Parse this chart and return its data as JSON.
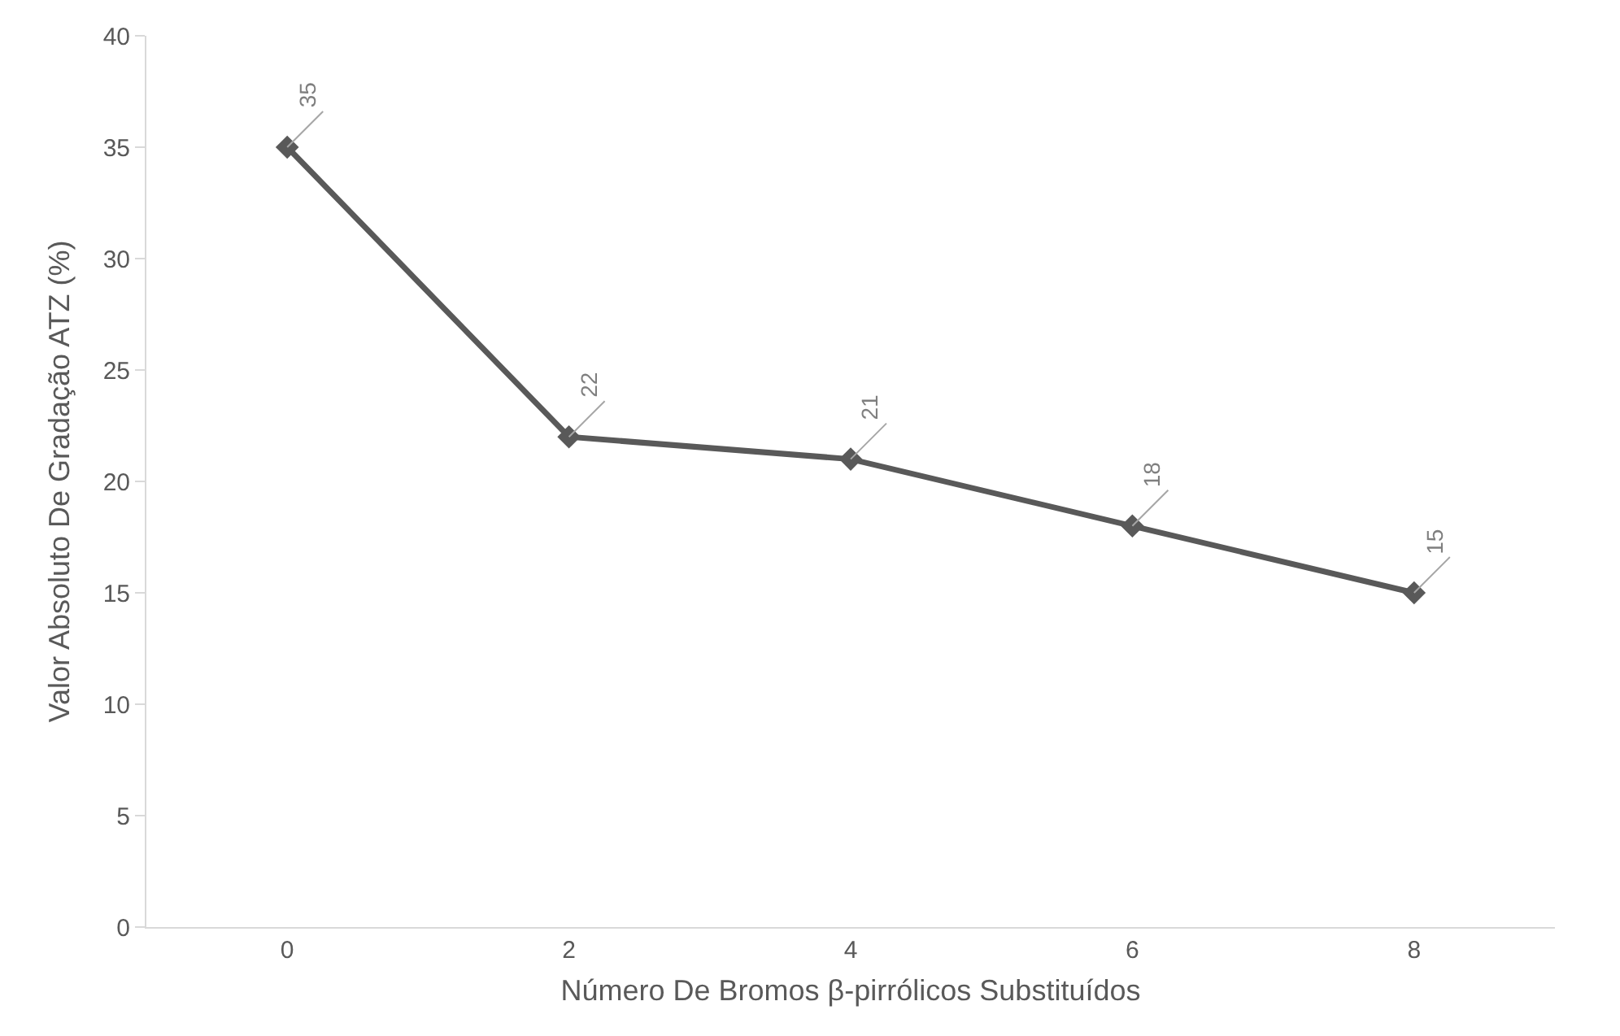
{
  "chart_data": {
    "type": "line",
    "xlabel": "Número De Bromos β-pirrólicos Substituídos",
    "ylabel": "Valor Absoluto De Gradação ATZ (%)",
    "categories": [
      "0",
      "2",
      "4",
      "6",
      "8"
    ],
    "series": [
      {
        "color": "#595959",
        "values": [
          35,
          22,
          21,
          18,
          15
        ]
      }
    ],
    "ylim": [
      0,
      40
    ],
    "yticks": [
      0,
      5,
      10,
      15,
      20,
      25,
      30,
      35,
      40
    ],
    "marker": "diamond",
    "line_style": "solid",
    "data_labels": true,
    "grid": false
  }
}
